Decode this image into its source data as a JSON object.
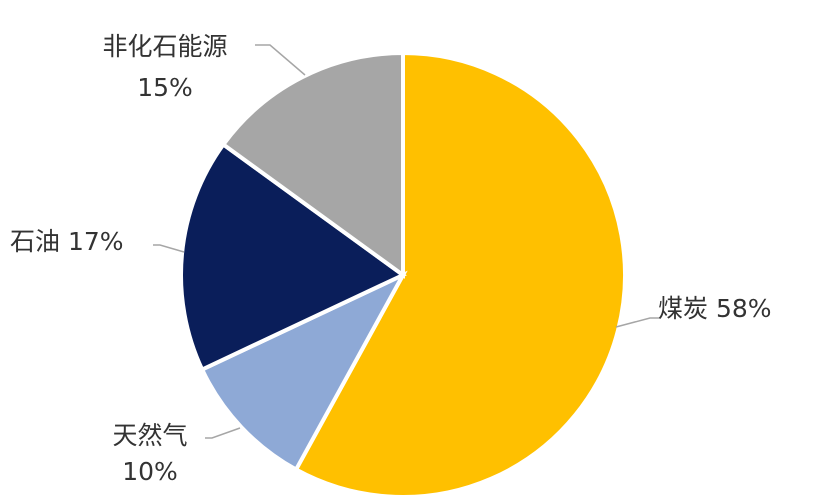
{
  "chart_data": {
    "type": "pie",
    "start": "top, clockwise",
    "slices": [
      {
        "label": "煤炭",
        "value": 58,
        "value_label": "58%",
        "color": "#FFC000"
      },
      {
        "label": "天然气",
        "value": 10,
        "value_label": "10%",
        "color": "#8EA9D6"
      },
      {
        "label": "石油",
        "value": 17,
        "value_label": "17%",
        "color": "#0A1E5A"
      },
      {
        "label": "非化石能源",
        "value": 15,
        "value_label": "15%",
        "color": "#A6A6A6"
      }
    ],
    "leader_line_color": "#A6A6A6"
  }
}
